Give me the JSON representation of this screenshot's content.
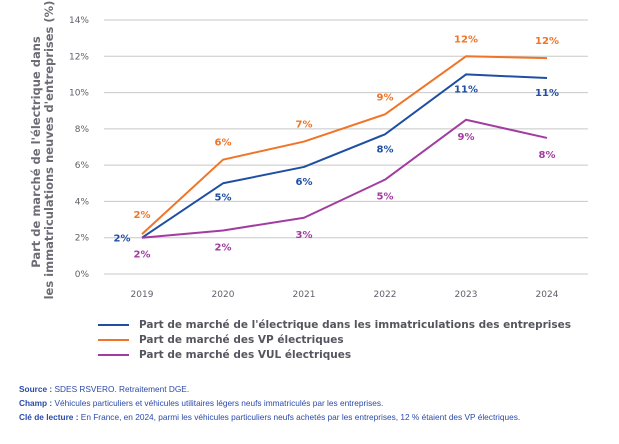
{
  "chart_data": {
    "type": "line",
    "title": "",
    "xlabel": "",
    "ylabel": "Part de marché de l'électrique dans les immatriculations neuves d'entreprises (%)",
    "ylabel_lines": [
      "Part de marché de l'électrique dans",
      "les immatriculations neuves d'entreprises (%)"
    ],
    "x": [
      "2019",
      "2020",
      "2021",
      "2022",
      "2023",
      "2024"
    ],
    "ylim": [
      0,
      14
    ],
    "yticks": [
      0,
      2,
      4,
      6,
      8,
      10,
      12,
      14
    ],
    "ytick_labels": [
      "0%",
      "2%",
      "4%",
      "6%",
      "8%",
      "10%",
      "12%",
      "14%"
    ],
    "grid": true,
    "legend_position": "bottom",
    "series": [
      {
        "name": "Part de marché de l'électrique dans les immatriculations des entreprises",
        "color": "#1f4fa3",
        "values": [
          2.0,
          5.0,
          5.9,
          7.7,
          11.0,
          10.8
        ],
        "labels": [
          "2%",
          "5%",
          "6%",
          "8%",
          "11%",
          "11%"
        ]
      },
      {
        "name": "Part de marché des VP électriques",
        "color": "#f07427",
        "values": [
          2.2,
          6.3,
          7.3,
          8.8,
          12.0,
          11.9
        ],
        "labels": [
          "2%",
          "6%",
          "7%",
          "9%",
          "12%",
          "12%"
        ]
      },
      {
        "name": "Part de marché des VUL électriques",
        "color": "#a23ca0",
        "values": [
          2.0,
          2.4,
          3.1,
          5.2,
          8.5,
          7.5
        ],
        "labels": [
          "2%",
          "2%",
          "3%",
          "5%",
          "9%",
          "8%"
        ]
      }
    ]
  },
  "notes": {
    "source_label": "Source :",
    "source_text": " SDES RSVERO. Retraitement DGE.",
    "champ_label": "Champ :",
    "champ_text": " Véhicules particuliers et véhicules utilitaires légers neufs immatriculés par les entreprises.",
    "cle_label": "Clé de lecture :",
    "cle_text": " En France, en 2024, parmi les véhicules particuliers neufs achetés par les entreprises, 12 % étaient des VP électriques."
  }
}
